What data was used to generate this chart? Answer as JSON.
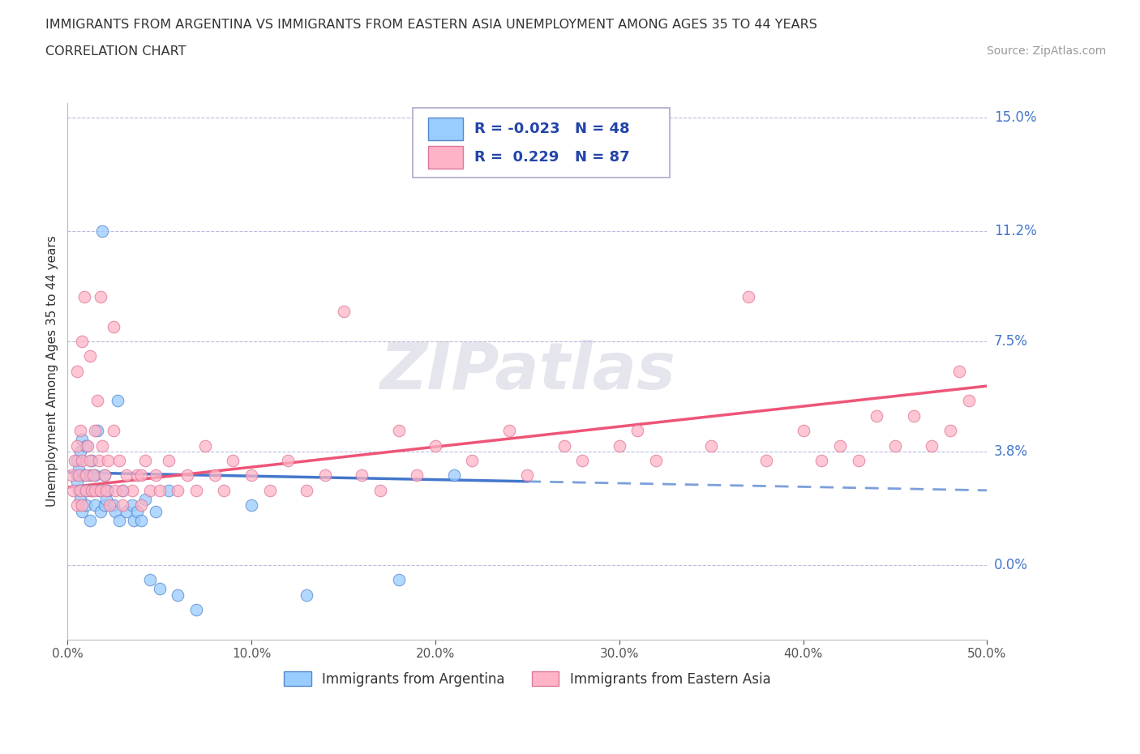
{
  "title_line1": "IMMIGRANTS FROM ARGENTINA VS IMMIGRANTS FROM EASTERN ASIA UNEMPLOYMENT AMONG AGES 35 TO 44 YEARS",
  "title_line2": "CORRELATION CHART",
  "source_text": "Source: ZipAtlas.com",
  "ylabel": "Unemployment Among Ages 35 to 44 years",
  "xlim": [
    0.0,
    0.5
  ],
  "ylim": [
    -0.025,
    0.155
  ],
  "yticks": [
    0.0,
    0.038,
    0.075,
    0.112,
    0.15
  ],
  "ytick_labels": [
    "0.0%",
    "3.8%",
    "7.5%",
    "11.2%",
    "15.0%"
  ],
  "xticks": [
    0.0,
    0.1,
    0.2,
    0.3,
    0.4,
    0.5
  ],
  "xtick_labels": [
    "0.0%",
    "10.0%",
    "20.0%",
    "30.0%",
    "40.0%",
    "50.0%"
  ],
  "argentina_color": "#99CCFF",
  "eastern_asia_color": "#FFB3C6",
  "argentina_edge": "#5588CC",
  "eastern_asia_edge": "#DD7799",
  "trend_argentina_color": "#4477CC",
  "trend_eastern_asia_color": "#EE5577",
  "R_argentina": -0.023,
  "N_argentina": 48,
  "R_eastern_asia": 0.229,
  "N_eastern_asia": 87,
  "watermark": "ZIPatlas",
  "argentina_x": [
    0.005,
    0.005,
    0.005,
    0.006,
    0.006,
    0.007,
    0.007,
    0.008,
    0.008,
    0.009,
    0.01,
    0.01,
    0.01,
    0.012,
    0.012,
    0.013,
    0.013,
    0.015,
    0.015,
    0.016,
    0.017,
    0.018,
    0.019,
    0.02,
    0.02,
    0.021,
    0.022,
    0.025,
    0.026,
    0.027,
    0.028,
    0.03,
    0.032,
    0.035,
    0.036,
    0.038,
    0.04,
    0.042,
    0.045,
    0.048,
    0.05,
    0.055,
    0.06,
    0.07,
    0.1,
    0.13,
    0.18,
    0.21
  ],
  "argentina_y": [
    0.03,
    0.035,
    0.028,
    0.025,
    0.032,
    0.022,
    0.038,
    0.018,
    0.042,
    0.03,
    0.025,
    0.04,
    0.02,
    0.03,
    0.015,
    0.035,
    0.025,
    0.02,
    0.03,
    0.045,
    0.025,
    0.018,
    0.112,
    0.02,
    0.03,
    0.022,
    0.025,
    0.02,
    0.018,
    0.055,
    0.015,
    0.025,
    0.018,
    0.02,
    0.015,
    0.018,
    0.015,
    0.022,
    -0.005,
    0.018,
    -0.008,
    0.025,
    -0.01,
    -0.015,
    0.02,
    -0.01,
    -0.005,
    0.03
  ],
  "eastern_asia_x": [
    0.002,
    0.003,
    0.004,
    0.005,
    0.005,
    0.006,
    0.007,
    0.007,
    0.008,
    0.008,
    0.009,
    0.01,
    0.01,
    0.011,
    0.012,
    0.013,
    0.014,
    0.015,
    0.015,
    0.016,
    0.017,
    0.018,
    0.019,
    0.02,
    0.021,
    0.022,
    0.023,
    0.025,
    0.026,
    0.028,
    0.03,
    0.032,
    0.035,
    0.038,
    0.04,
    0.042,
    0.045,
    0.048,
    0.05,
    0.055,
    0.06,
    0.065,
    0.07,
    0.075,
    0.08,
    0.085,
    0.09,
    0.1,
    0.11,
    0.12,
    0.13,
    0.14,
    0.15,
    0.16,
    0.17,
    0.18,
    0.19,
    0.2,
    0.22,
    0.24,
    0.25,
    0.27,
    0.28,
    0.3,
    0.31,
    0.32,
    0.35,
    0.37,
    0.38,
    0.4,
    0.41,
    0.42,
    0.43,
    0.44,
    0.45,
    0.46,
    0.47,
    0.48,
    0.49,
    0.485,
    0.005,
    0.008,
    0.012,
    0.018,
    0.025,
    0.03,
    0.04
  ],
  "eastern_asia_y": [
    0.03,
    0.025,
    0.035,
    0.02,
    0.04,
    0.03,
    0.025,
    0.045,
    0.02,
    0.035,
    0.09,
    0.03,
    0.025,
    0.04,
    0.035,
    0.025,
    0.03,
    0.045,
    0.025,
    0.055,
    0.035,
    0.025,
    0.04,
    0.03,
    0.025,
    0.035,
    0.02,
    0.045,
    0.025,
    0.035,
    0.02,
    0.03,
    0.025,
    0.03,
    0.02,
    0.035,
    0.025,
    0.03,
    0.025,
    0.035,
    0.025,
    0.03,
    0.025,
    0.04,
    0.03,
    0.025,
    0.035,
    0.03,
    0.025,
    0.035,
    0.025,
    0.03,
    0.085,
    0.03,
    0.025,
    0.045,
    0.03,
    0.04,
    0.035,
    0.045,
    0.03,
    0.04,
    0.035,
    0.04,
    0.045,
    0.035,
    0.04,
    0.09,
    0.035,
    0.045,
    0.035,
    0.04,
    0.035,
    0.05,
    0.04,
    0.05,
    0.04,
    0.045,
    0.055,
    0.065,
    0.065,
    0.075,
    0.07,
    0.09,
    0.08,
    0.025,
    0.03
  ],
  "trend_arg_x0": 0.0,
  "trend_arg_x1": 0.25,
  "trend_arg_y0": 0.031,
  "trend_arg_y1": 0.028,
  "trend_ea_x0": 0.0,
  "trend_ea_x1": 0.5,
  "trend_ea_y0": 0.026,
  "trend_ea_y1": 0.06
}
